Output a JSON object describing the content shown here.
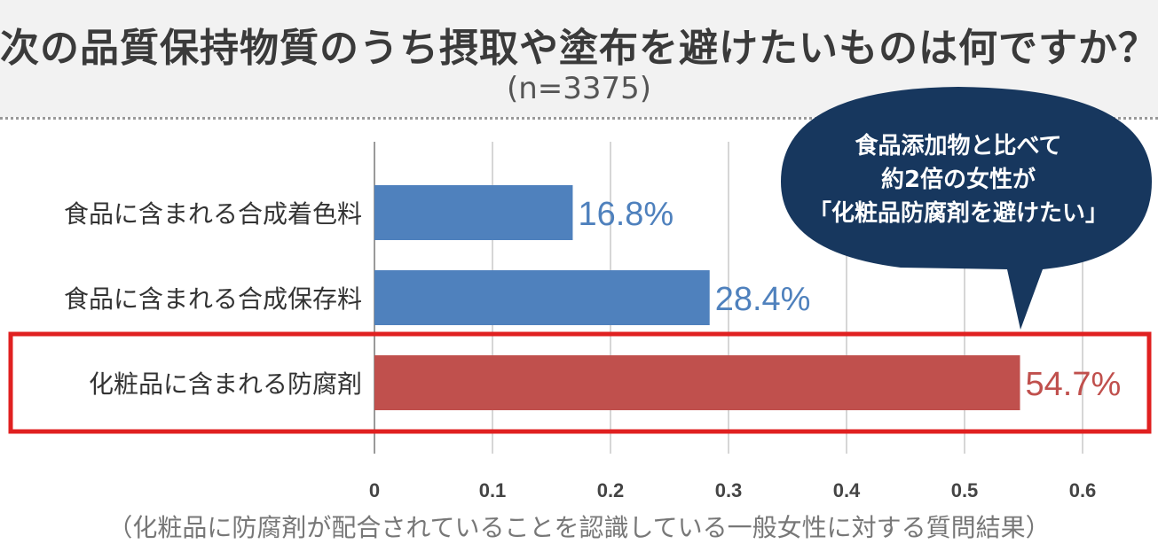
{
  "header": {
    "title": "次の品質保持物質のうち摂取や塗布を避けたいものは何ですか？",
    "subtitle": "(n=3375)"
  },
  "callout": {
    "lines": [
      "食品添加物と比べて",
      "約2倍の女性が",
      "「化粧品防腐剤を避けたい」"
    ]
  },
  "footnote": "（化粧品に防腐剤が配合されていることを認識している一般女性に対する質問結果）",
  "chart_data": {
    "type": "bar",
    "orientation": "horizontal",
    "categories": [
      "食品に含まれる合成着色料",
      "食品に含まれる合成保存料",
      "化粧品に含まれる防腐剤"
    ],
    "values": [
      0.168,
      0.284,
      0.547
    ],
    "data_labels": [
      "16.8%",
      "28.4%",
      "54.7%"
    ],
    "bar_colors": [
      "#4f81bd",
      "#4f81bd",
      "#c0504d"
    ],
    "label_colors": [
      "#4f81bd",
      "#4f81bd",
      "#c0504d"
    ],
    "highlight_index": 2,
    "highlight_color": "#e02020",
    "xlim": [
      0,
      0.6
    ],
    "xticks": [
      0,
      0.1,
      0.2,
      0.3,
      0.4,
      0.5,
      0.6
    ],
    "xtick_labels": [
      "0",
      "0.1",
      "0.2",
      "0.3",
      "0.4",
      "0.5",
      "0.6"
    ],
    "grid": true
  }
}
